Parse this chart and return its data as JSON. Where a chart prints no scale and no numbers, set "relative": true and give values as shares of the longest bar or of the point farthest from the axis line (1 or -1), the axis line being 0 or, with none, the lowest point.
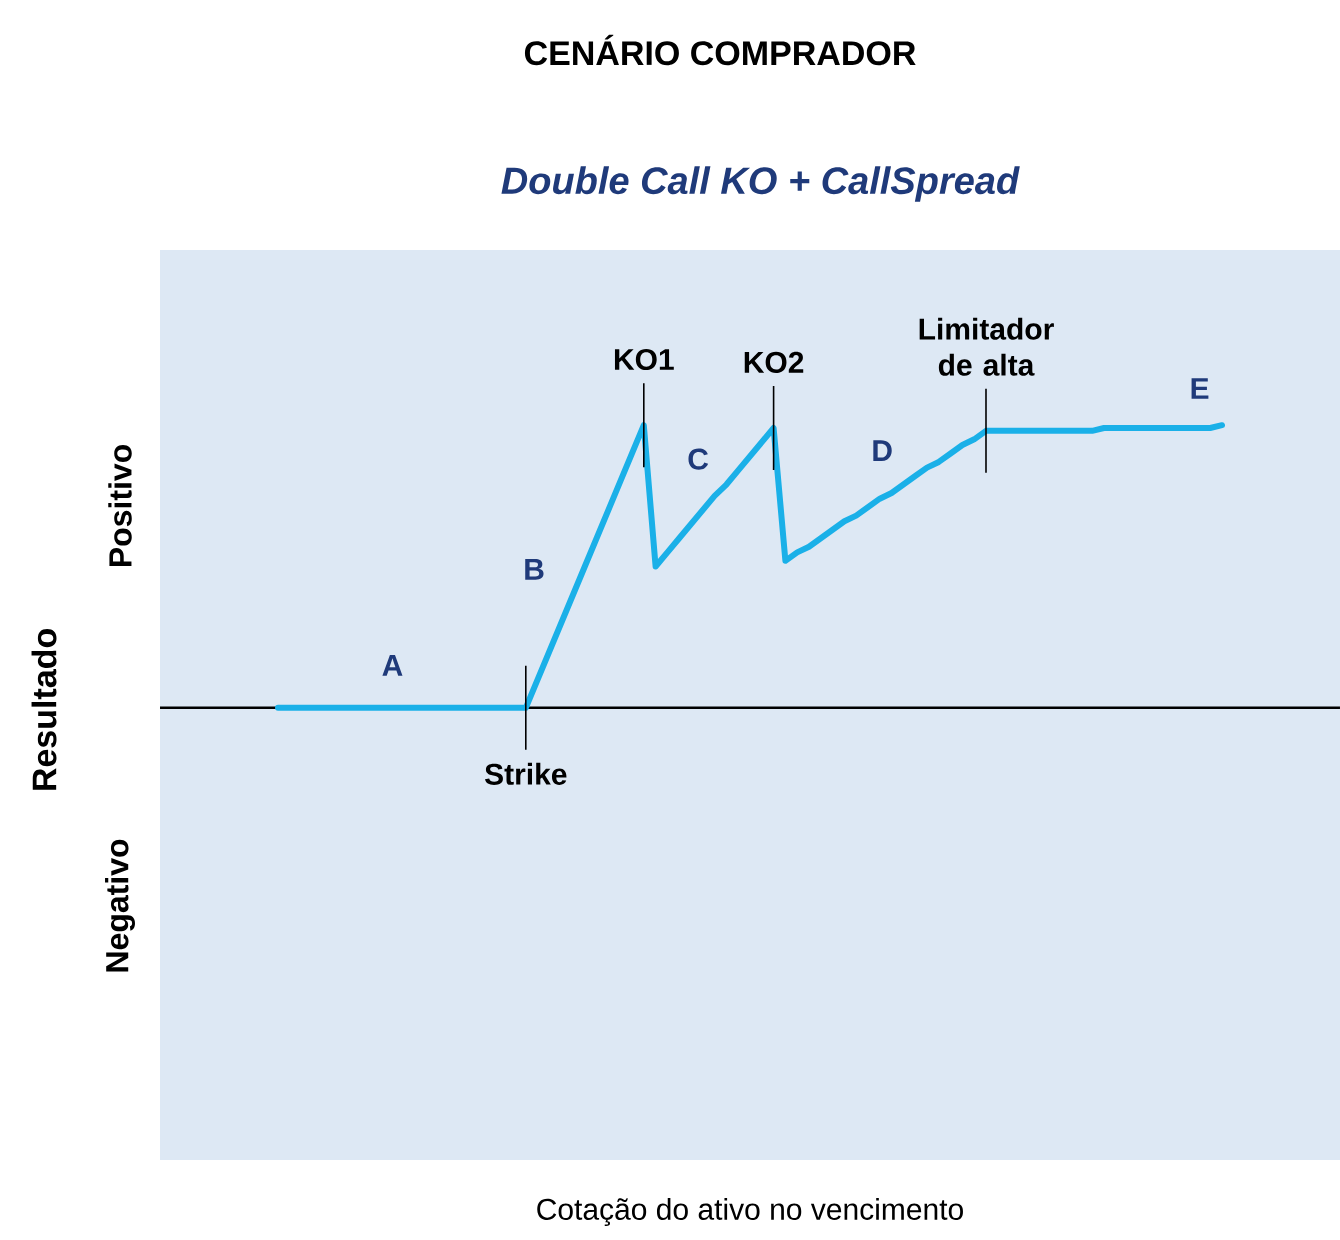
{
  "chart_data": {
    "type": "line",
    "title": "CENÁRIO COMPRADOR",
    "subtitle": "Double Call KO + CallSpread",
    "relative": true,
    "categories": [
      null,
      null,
      null,
      null,
      null,
      null,
      null,
      null,
      null,
      null,
      null,
      null,
      null,
      null,
      null,
      null,
      null,
      null,
      null,
      null,
      null,
      null,
      null,
      null,
      null,
      null,
      null,
      null,
      null,
      null,
      null,
      null,
      null,
      null,
      null,
      null,
      null,
      null,
      null,
      null,
      null,
      null,
      null,
      null,
      null,
      null,
      null,
      null,
      null,
      null,
      null,
      null,
      null,
      null,
      null,
      null,
      null,
      null,
      null,
      null,
      null,
      null,
      null,
      null,
      null,
      null,
      null,
      null,
      null,
      null,
      null,
      null,
      null,
      null,
      null,
      null,
      null,
      null,
      null,
      null,
      null
    ],
    "series": [
      {
        "color": "#1ab0e8",
        "values": [
          0,
          0,
          0,
          0,
          0,
          0,
          0,
          0,
          0,
          0,
          0,
          0,
          0,
          0,
          0,
          0,
          0,
          0,
          0,
          0,
          0,
          0,
          0.1,
          0.2,
          0.3,
          0.4,
          0.5,
          0.6,
          0.7,
          0.8,
          0.9,
          1.0,
          0.5,
          0.55,
          0.6,
          0.65,
          0.7,
          0.75,
          0.79,
          0.84,
          0.89,
          0.94,
          0.99,
          0.52,
          0.55,
          0.57,
          0.6,
          0.63,
          0.66,
          0.68,
          0.71,
          0.74,
          0.76,
          0.79,
          0.82,
          0.85,
          0.87,
          0.9,
          0.93,
          0.95,
          0.98,
          0.98,
          0.98,
          0.98,
          0.98,
          0.98,
          0.98,
          0.98,
          0.98,
          0.98,
          0.99,
          0.99,
          0.99,
          0.99,
          0.99,
          0.99,
          0.99,
          0.99,
          0.99,
          0.99,
          1.0
        ]
      }
    ],
    "annotations": [
      "Strike",
      "KO1",
      "KO2",
      "Limitador de alta",
      "A",
      "B",
      "C",
      "D",
      "E",
      "Positivo",
      "Negativo",
      "Cotação do ativo no vencimento",
      "Resultado"
    ]
  }
}
